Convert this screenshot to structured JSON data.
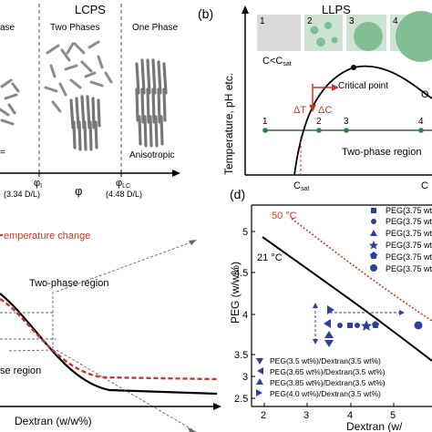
{
  "panel_a": {
    "header": "LCPS",
    "phase_left": "ase",
    "phase_two": "Two Phases",
    "phase_one": "One Phase",
    "anisotropic": "Anisotropic",
    "phi_i": "φ",
    "phi_i_sub": "I",
    "phi_i_val": "(3.34 D/L)",
    "phi": "φ",
    "phi_lc": "φ",
    "phi_lc_sub": "LC",
    "phi_lc_val": "(4.48 D/L)",
    "iso_fragment": "="
  },
  "panel_b": {
    "label": "(b)",
    "header": "LLPS",
    "ylabel": "Temperature, pH etc.",
    "box_numbers": [
      "1",
      "2",
      "3",
      "4"
    ],
    "c_less": "C<C",
    "c_less_sub": "sat",
    "critical_point": "Critical point",
    "delta_t": "ΔT",
    "delta_c": "ΔC",
    "o_fragment": "O",
    "point_labels": [
      "1",
      "2",
      "3",
      "4"
    ],
    "two_phase": "Two-phase region",
    "csat": "C",
    "csat_sub": "sat",
    "c_fragment": "C"
  },
  "panel_c": {
    "temp_change": "emperature change",
    "two_phase": "Two-phase region",
    "one_phase": "se region",
    "xlabel": "Dextran (w/w%)"
  },
  "panel_d": {
    "label": "(d)",
    "ylabel": "PEG (w/w%)",
    "xlabel": "Dextran (w/",
    "temp_50": "50 °C",
    "temp_21": "21 °C",
    "y_ticks": [
      "5",
      "4.5",
      "4",
      "3.5",
      "3",
      "2.5"
    ],
    "x_ticks": [
      "2",
      "3",
      "4",
      "5"
    ],
    "legend_right": [
      "PEG(3.75 wt",
      "PEG(3.75 wt",
      "PEG(3.75 wt",
      "PEG(3.75 wt",
      "PEG(3.75 wt",
      "PEG(3.75 wt"
    ],
    "legend_bottom": [
      "PEG(3.5 wt%)/Dextran(3.5 wt%)",
      "PEG(3.65 wt%)/Dextran(3.5 wt%)",
      "PEG(3.85 wt%)/Dextran(3.5 wt%)",
      "PEG(4.0 wt%)/Dextran(3.5 wt%)"
    ],
    "marker_color": "#2e3f9e",
    "solid_color": "#000000",
    "dotted_color": "#c0392b"
  }
}
